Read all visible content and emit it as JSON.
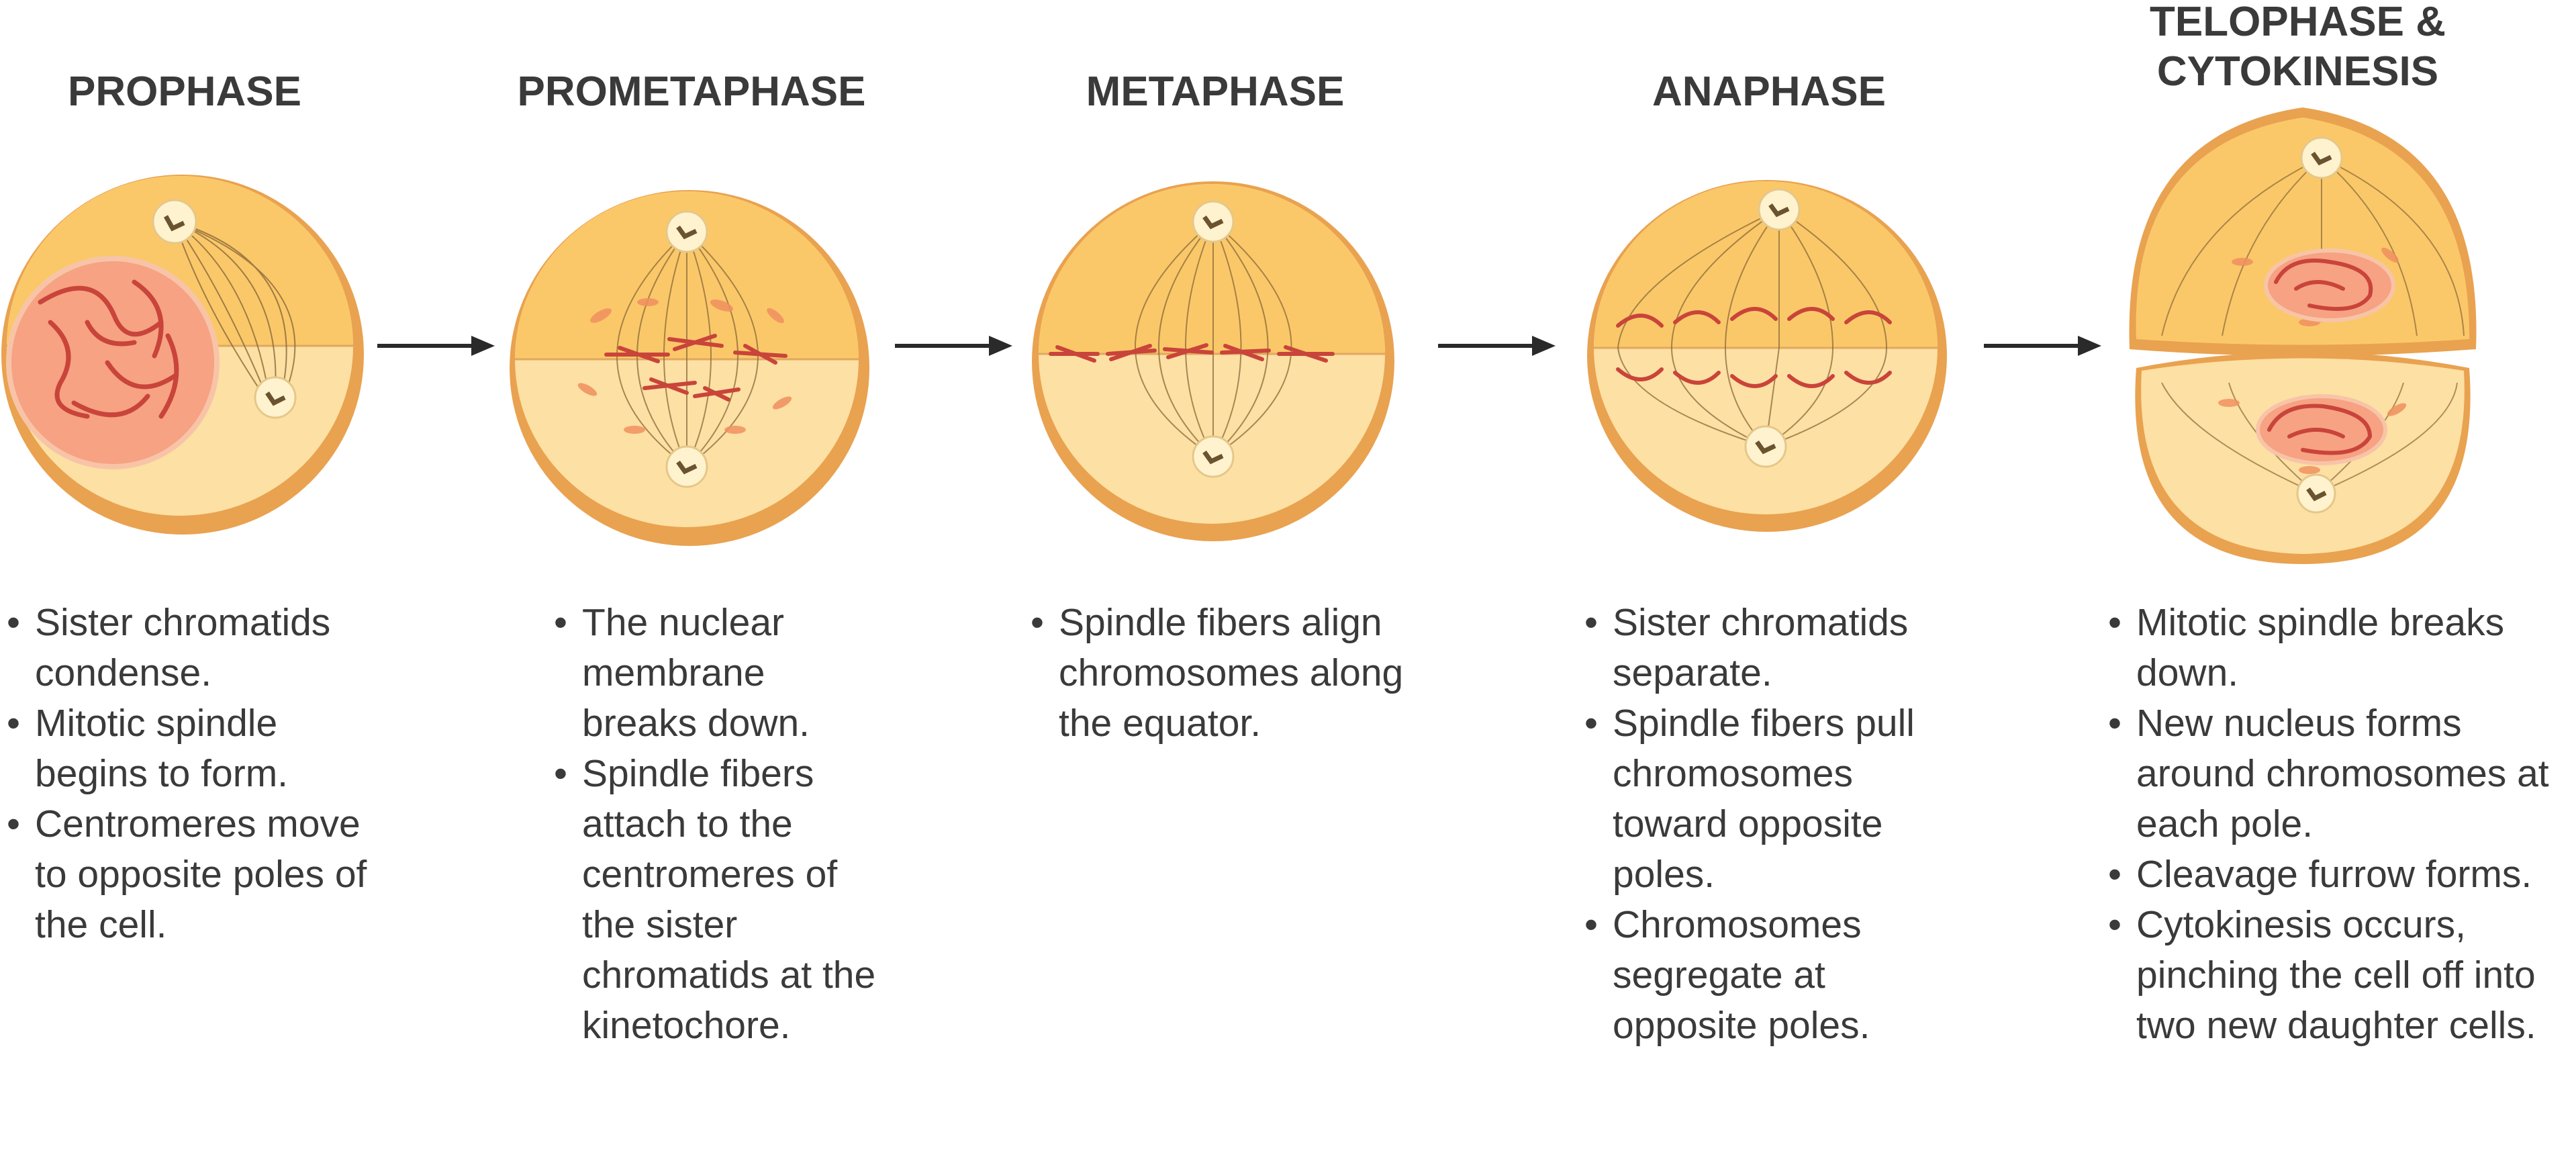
{
  "stages": [
    {
      "title": "PROPHASE",
      "bullets": [
        "Sister chromatids condense.",
        "Mitotic spindle begins to form.",
        "Centromeres move to opposite poles of the cell."
      ]
    },
    {
      "title": "PROMETAPHASE",
      "bullets": [
        "The nuclear membrane breaks down.",
        "Spindle fibers attach to the centromeres of the sister chromatids at the kinetochore."
      ]
    },
    {
      "title": "METAPHASE",
      "bullets": [
        "Spindle fibers align chromosomes along the equator."
      ]
    },
    {
      "title": "ANAPHASE",
      "bullets": [
        "Sister chromatids separate.",
        "Spindle fibers pull chromosomes toward opposite poles.",
        "Chromosomes segregate at opposite poles."
      ]
    },
    {
      "title_line1": "TELOPHASE &",
      "title_line2": "CYTOKINESIS",
      "bullets": [
        "Mitotic spindle breaks down.",
        "New nucleus forms around chromosomes at each pole.",
        "Cleavage furrow forms.",
        "Cytokinesis occurs, pinching the cell off into two new daughter cells."
      ]
    }
  ],
  "colors": {
    "cell_rim": "#e9a250",
    "cell_upper": "#fbc869",
    "cell_lower": "#fde0a3",
    "chromosome": "#c9443a",
    "fiber": "#8a6a3a",
    "centrosome": "#fff3cf",
    "text": "#3a3a3a"
  }
}
